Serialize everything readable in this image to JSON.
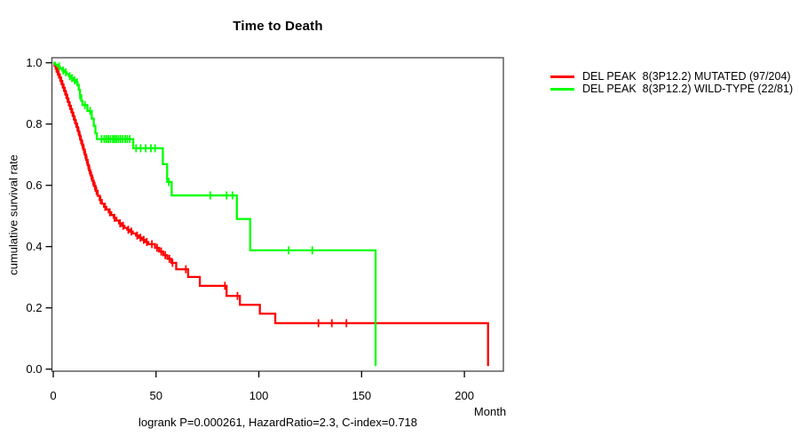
{
  "title": "Time to Death",
  "footer": "logrank P=0.000261, HazardRatio=2.3, C-index=0.718",
  "x_axis_label": "Month",
  "y_axis_label": "cumulative survival rate",
  "colors": {
    "mutated": "#ff0000",
    "wild_type": "#00ff00",
    "axis": "#444444",
    "text": "#000000",
    "background": "#ffffff"
  },
  "legend": {
    "items": [
      {
        "label": "DEL PEAK  8(3P12.2) MUTATED (97/204)",
        "color": "#ff0000"
      },
      {
        "label": "DEL PEAK  8(3P12.2) WILD-TYPE (22/81)",
        "color": "#00ff00"
      }
    ]
  },
  "chart_data": {
    "type": "line",
    "subtype": "kaplan-meier-step",
    "title": "Time to Death",
    "xlabel": "Month",
    "ylabel": "cumulative survival rate",
    "xlim": [
      0,
      220
    ],
    "ylim": [
      0.0,
      1.0
    ],
    "x_ticks": [
      0,
      50,
      100,
      150,
      200
    ],
    "y_ticks": [
      0.0,
      0.2,
      0.4,
      0.6,
      0.8,
      1.0
    ],
    "grid": false,
    "legend_position": "right-outside",
    "stats": {
      "logrank_p": "0.000261",
      "hazard_ratio": "2.3",
      "c_index": "0.718"
    },
    "series": [
      {
        "name": "DEL PEAK  8(3P12.2) MUTATED (97/204)",
        "color": "#ff0000",
        "events": 97,
        "n": 204,
        "steps": [
          [
            0,
            1.0
          ],
          [
            0.6,
            0.99
          ],
          [
            1.2,
            0.981
          ],
          [
            1.8,
            0.971
          ],
          [
            2.4,
            0.962
          ],
          [
            3.0,
            0.952
          ],
          [
            3.6,
            0.941
          ],
          [
            4.2,
            0.93
          ],
          [
            4.8,
            0.919
          ],
          [
            5.4,
            0.908
          ],
          [
            6.0,
            0.896
          ],
          [
            6.6,
            0.884
          ],
          [
            7.2,
            0.872
          ],
          [
            7.8,
            0.86
          ],
          [
            8.4,
            0.849
          ],
          [
            9.0,
            0.838
          ],
          [
            9.6,
            0.826
          ],
          [
            10.2,
            0.814
          ],
          [
            10.8,
            0.802
          ],
          [
            11.4,
            0.79
          ],
          [
            12.0,
            0.777
          ],
          [
            12.6,
            0.763
          ],
          [
            13.2,
            0.748
          ],
          [
            13.9,
            0.733
          ],
          [
            14.6,
            0.717
          ],
          [
            15.3,
            0.7
          ],
          [
            16.0,
            0.683
          ],
          [
            16.7,
            0.666
          ],
          [
            17.4,
            0.649
          ],
          [
            18.1,
            0.632
          ],
          [
            18.9,
            0.615
          ],
          [
            19.7,
            0.598
          ],
          [
            20.6,
            0.582
          ],
          [
            21.6,
            0.566
          ],
          [
            22.6,
            0.552
          ],
          [
            23.6,
            0.54
          ],
          [
            24.7,
            0.53
          ],
          [
            25.8,
            0.521
          ],
          [
            27.0,
            0.512
          ],
          [
            28.2,
            0.503
          ],
          [
            29.4,
            0.494
          ],
          [
            30.7,
            0.485
          ],
          [
            32.0,
            0.476
          ],
          [
            33.3,
            0.468
          ],
          [
            34.6,
            0.461
          ],
          [
            36.0,
            0.455
          ],
          [
            37.3,
            0.449
          ],
          [
            38.7,
            0.443
          ],
          [
            40.2,
            0.436
          ],
          [
            41.7,
            0.429
          ],
          [
            43.2,
            0.422
          ],
          [
            44.7,
            0.415
          ],
          [
            46.2,
            0.408
          ],
          [
            49.5,
            0.396
          ],
          [
            51.5,
            0.384
          ],
          [
            53.5,
            0.372
          ],
          [
            55.5,
            0.36
          ],
          [
            57.5,
            0.347
          ],
          [
            59.8,
            0.326
          ],
          [
            65.6,
            0.301
          ],
          [
            71.3,
            0.272
          ],
          [
            84.3,
            0.239
          ],
          [
            90.8,
            0.21
          ],
          [
            100.5,
            0.181
          ],
          [
            108.0,
            0.15
          ],
          [
            211.5,
            0.01
          ]
        ],
        "censor_marks": [
          1.5,
          2.1,
          2.7,
          3.3,
          3.9,
          4.5,
          5.1,
          5.7,
          6.3,
          6.9,
          7.5,
          8.1,
          8.7,
          9.3,
          9.9,
          10.5,
          11.1,
          11.7,
          12.3,
          12.9,
          13.5,
          14.2,
          14.9,
          15.6,
          16.3,
          17.0,
          17.7,
          18.5,
          19.3,
          20.2,
          21.0,
          23.0,
          25.2,
          27.5,
          29.8,
          32.5,
          34.0,
          36.5,
          38.0,
          40.8,
          42.4,
          44.0,
          45.5,
          48.0,
          50.5,
          52.5,
          54.5,
          56.5,
          58.0,
          64.5,
          83.5,
          89.6,
          129.0,
          135.5,
          142.6
        ]
      },
      {
        "name": "DEL PEAK  8(3P12.2) WILD-TYPE (22/81)",
        "color": "#00ff00",
        "events": 22,
        "n": 81,
        "steps": [
          [
            0,
            1.0
          ],
          [
            0.9,
            0.994
          ],
          [
            2.0,
            0.988
          ],
          [
            3.2,
            0.981
          ],
          [
            4.3,
            0.975
          ],
          [
            5.4,
            0.969
          ],
          [
            6.5,
            0.963
          ],
          [
            7.6,
            0.956
          ],
          [
            8.7,
            0.95
          ],
          [
            9.8,
            0.943
          ],
          [
            10.9,
            0.936
          ],
          [
            11.8,
            0.928
          ],
          [
            12.4,
            0.912
          ],
          [
            13.0,
            0.894
          ],
          [
            13.6,
            0.876
          ],
          [
            14.2,
            0.862
          ],
          [
            16.6,
            0.843
          ],
          [
            18.7,
            0.818
          ],
          [
            19.7,
            0.794
          ],
          [
            20.5,
            0.77
          ],
          [
            21.2,
            0.751
          ],
          [
            38.9,
            0.721
          ],
          [
            53.3,
            0.669
          ],
          [
            55.4,
            0.611
          ],
          [
            57.6,
            0.567
          ],
          [
            89.3,
            0.49
          ],
          [
            95.8,
            0.388
          ],
          [
            156.8,
            0.01
          ]
        ],
        "censor_marks": [
          2.9,
          4.8,
          6.1,
          8.0,
          9.1,
          10.4,
          11.6,
          13.0,
          15.4,
          17.9,
          23.5,
          24.8,
          25.8,
          26.8,
          27.8,
          29.0,
          29.8,
          30.7,
          31.7,
          32.7,
          33.8,
          35.0,
          36.0,
          37.2,
          40.3,
          42.5,
          45.0,
          47.5,
          49.5,
          56.2,
          76.4,
          84.3,
          87.2,
          114.5,
          126.0
        ]
      }
    ]
  }
}
